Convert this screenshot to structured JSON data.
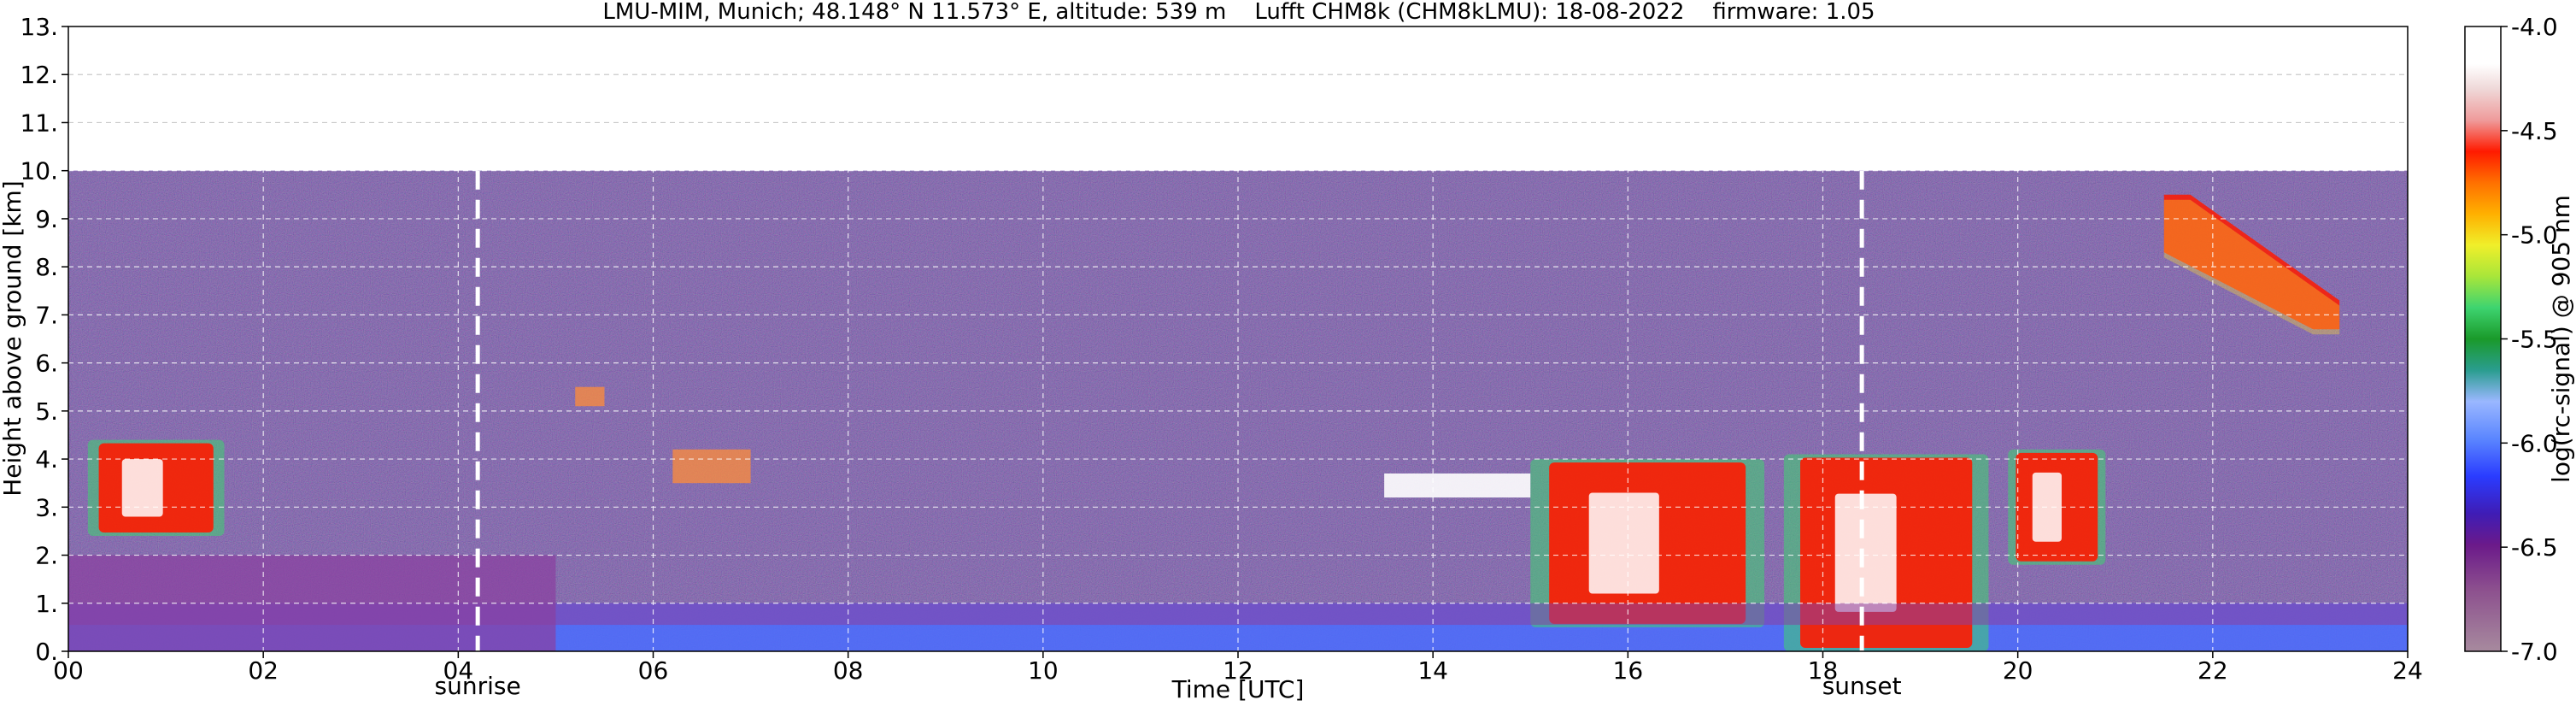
{
  "chart_data": {
    "type": "heatmap",
    "title": "LMU-MIM, Munich; 48.148° N 11.573° E, altitude: 539 m    Lufft CHM8k (CHM8kLMU): 18-08-2022    firmware: 1.05",
    "xlabel": "Time [UTC]",
    "ylabel": "Height above ground [km]",
    "xlim": [
      0,
      24
    ],
    "ylim": [
      0,
      13
    ],
    "x_ticks": [
      0,
      2,
      4,
      6,
      8,
      10,
      12,
      14,
      16,
      18,
      20,
      22,
      24
    ],
    "x_tick_labels": [
      "00",
      "02",
      "04",
      "06",
      "08",
      "10",
      "12",
      "14",
      "16",
      "18",
      "20",
      "22",
      "24"
    ],
    "y_ticks": [
      0,
      1,
      2,
      3,
      4,
      5,
      6,
      7,
      8,
      9,
      10,
      11,
      12,
      13
    ],
    "y_tick_labels": [
      "0.",
      "1.",
      "2.",
      "3.",
      "4.",
      "5.",
      "6.",
      "7.",
      "8.",
      "9.",
      "10.",
      "11.",
      "12.",
      "13."
    ],
    "grid": true,
    "measurement_top_km": 10,
    "sunrise_hour": 4.2,
    "sunset_hour": 18.4,
    "sunrise_label": "sunrise",
    "sunset_label": "sunset",
    "colorbar": {
      "label": "log(rc-signal) @ 905 nm",
      "min": -7.0,
      "max": -4.0,
      "ticks": [
        -7.0,
        -6.5,
        -6.0,
        -5.5,
        -5.0,
        -4.5,
        -4.0
      ],
      "tick_labels": [
        "-7.0",
        "-6.5",
        "-6.0",
        "-5.5",
        "-5.0",
        "-4.5",
        "-4.0"
      ]
    },
    "colors": {
      "background_noise": "#3d3152",
      "boundary_layer_purple": "#8a3fa0",
      "aerosol_blue": "#4a6cff",
      "cloud_red": "#ff1a00",
      "cloud_white": "#ffffff",
      "no_signal": "#000000"
    },
    "features": [
      {
        "kind": "boundary_layer",
        "x_start": 0,
        "x_end": 24,
        "top_km": 1.0
      },
      {
        "kind": "residual_layer",
        "x_start": 0,
        "x_end": 5,
        "top_km": 2.0
      },
      {
        "kind": "cloud",
        "x_start": 0.2,
        "x_end": 1.6,
        "base_km": 2.4,
        "top_km": 4.4
      },
      {
        "kind": "cloud",
        "x_start": 15.0,
        "x_end": 17.4,
        "base_km": 0.5,
        "top_km": 4.0
      },
      {
        "kind": "cloud",
        "x_start": 17.6,
        "x_end": 19.7,
        "base_km": 0.0,
        "top_km": 4.1
      },
      {
        "kind": "cloud",
        "x_start": 19.9,
        "x_end": 20.9,
        "base_km": 1.8,
        "top_km": 4.2
      },
      {
        "kind": "cirrus",
        "x_start": 21.5,
        "x_end": 23.3,
        "base_km": 6.7,
        "top_km": 9.5
      },
      {
        "kind": "cloud_layer",
        "x_start": 13.5,
        "x_end": 15.0,
        "base_km": 3.2,
        "top_km": 3.7
      },
      {
        "kind": "aerosol_patch",
        "x_start": 6.2,
        "x_end": 7.0,
        "base_km": 3.5,
        "top_km": 4.2
      },
      {
        "kind": "aerosol_patch",
        "x_start": 5.2,
        "x_end": 5.5,
        "base_km": 5.1,
        "top_km": 5.5
      }
    ]
  }
}
